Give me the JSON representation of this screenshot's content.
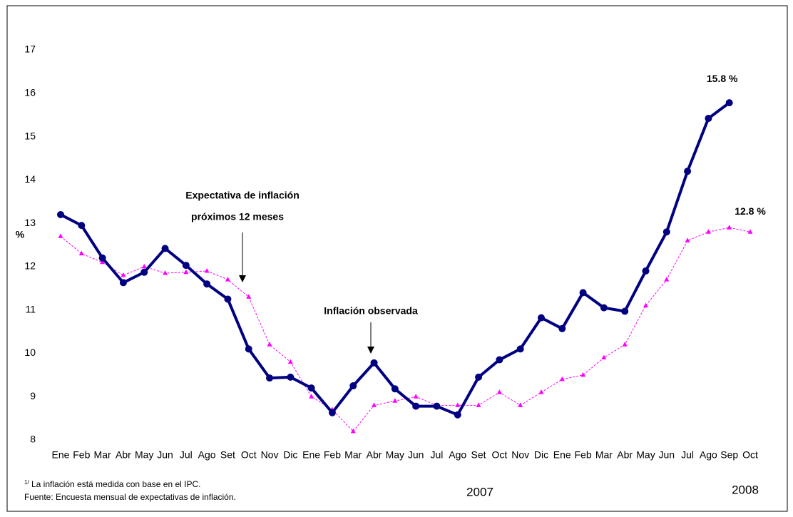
{
  "chart_data": {
    "type": "line",
    "y_label": "%",
    "categories": [
      "Ene",
      "Feb",
      "Mar",
      "Abr",
      "May",
      "Jun",
      "Jul",
      "Ago",
      "Set",
      "Oct",
      "Nov",
      "Dic",
      "Ene",
      "Feb",
      "Mar",
      "Abr",
      "May",
      "Jun",
      "Jul",
      "Ago",
      "Set",
      "Oct",
      "Nov",
      "Dic",
      "Ene",
      "Feb",
      "Mar",
      "Abr",
      "May",
      "Jun",
      "Jul",
      "Ago",
      "Sep",
      "Oct"
    ],
    "series": [
      {
        "name": "Inflación observada",
        "color": "#000080",
        "values": [
          13.2,
          12.95,
          12.2,
          11.63,
          11.87,
          12.42,
          12.03,
          11.6,
          11.25,
          10.1,
          9.43,
          9.45,
          9.2,
          8.63,
          9.25,
          9.78,
          9.18,
          8.78,
          8.78,
          8.58,
          9.45,
          9.85,
          10.1,
          10.82,
          10.57,
          11.4,
          11.05,
          10.97,
          11.9,
          12.8,
          14.2,
          15.42,
          15.78,
          null
        ],
        "value_labels": [
          null,
          null,
          null,
          null,
          null,
          null,
          null,
          null,
          null,
          null,
          null,
          null,
          null,
          null,
          null,
          null,
          null,
          null,
          null,
          null,
          null,
          null,
          null,
          null,
          null,
          null,
          null,
          null,
          null,
          null,
          null,
          null,
          "15.8 %",
          null
        ]
      },
      {
        "name": "Expectativa de inflación próximos 12 meses",
        "color": "#ff00ff",
        "values": [
          12.7,
          12.3,
          12.1,
          11.8,
          12.0,
          11.85,
          11.87,
          11.9,
          11.7,
          11.3,
          10.2,
          9.8,
          9.0,
          8.7,
          8.2,
          8.8,
          8.9,
          9.0,
          8.8,
          8.8,
          8.8,
          9.1,
          8.8,
          9.1,
          9.4,
          9.5,
          9.9,
          10.2,
          11.1,
          11.7,
          12.6,
          12.8,
          12.9,
          12.8
        ],
        "value_labels": [
          null,
          null,
          null,
          null,
          null,
          null,
          null,
          null,
          null,
          null,
          null,
          null,
          null,
          null,
          null,
          null,
          null,
          null,
          null,
          null,
          null,
          null,
          null,
          null,
          null,
          null,
          null,
          null,
          null,
          null,
          null,
          null,
          null,
          "12.8 %"
        ]
      }
    ],
    "annotations": [
      {
        "lines": [
          "Expectativa de inflación",
          "próximos 12 meses"
        ]
      },
      {
        "lines": [
          "Inflación observada"
        ]
      }
    ],
    "year_labels": [
      "2007",
      "2008"
    ],
    "ylim": [
      8,
      17
    ],
    "yticks": [
      8,
      9,
      10,
      11,
      12,
      13,
      14,
      15,
      16,
      17
    ],
    "grid": false,
    "footnote_marker": "1/",
    "footnote": "La inflación está medida con base en el IPC.",
    "source": "Fuente: Encuesta mensual de expectativas de inflación."
  }
}
